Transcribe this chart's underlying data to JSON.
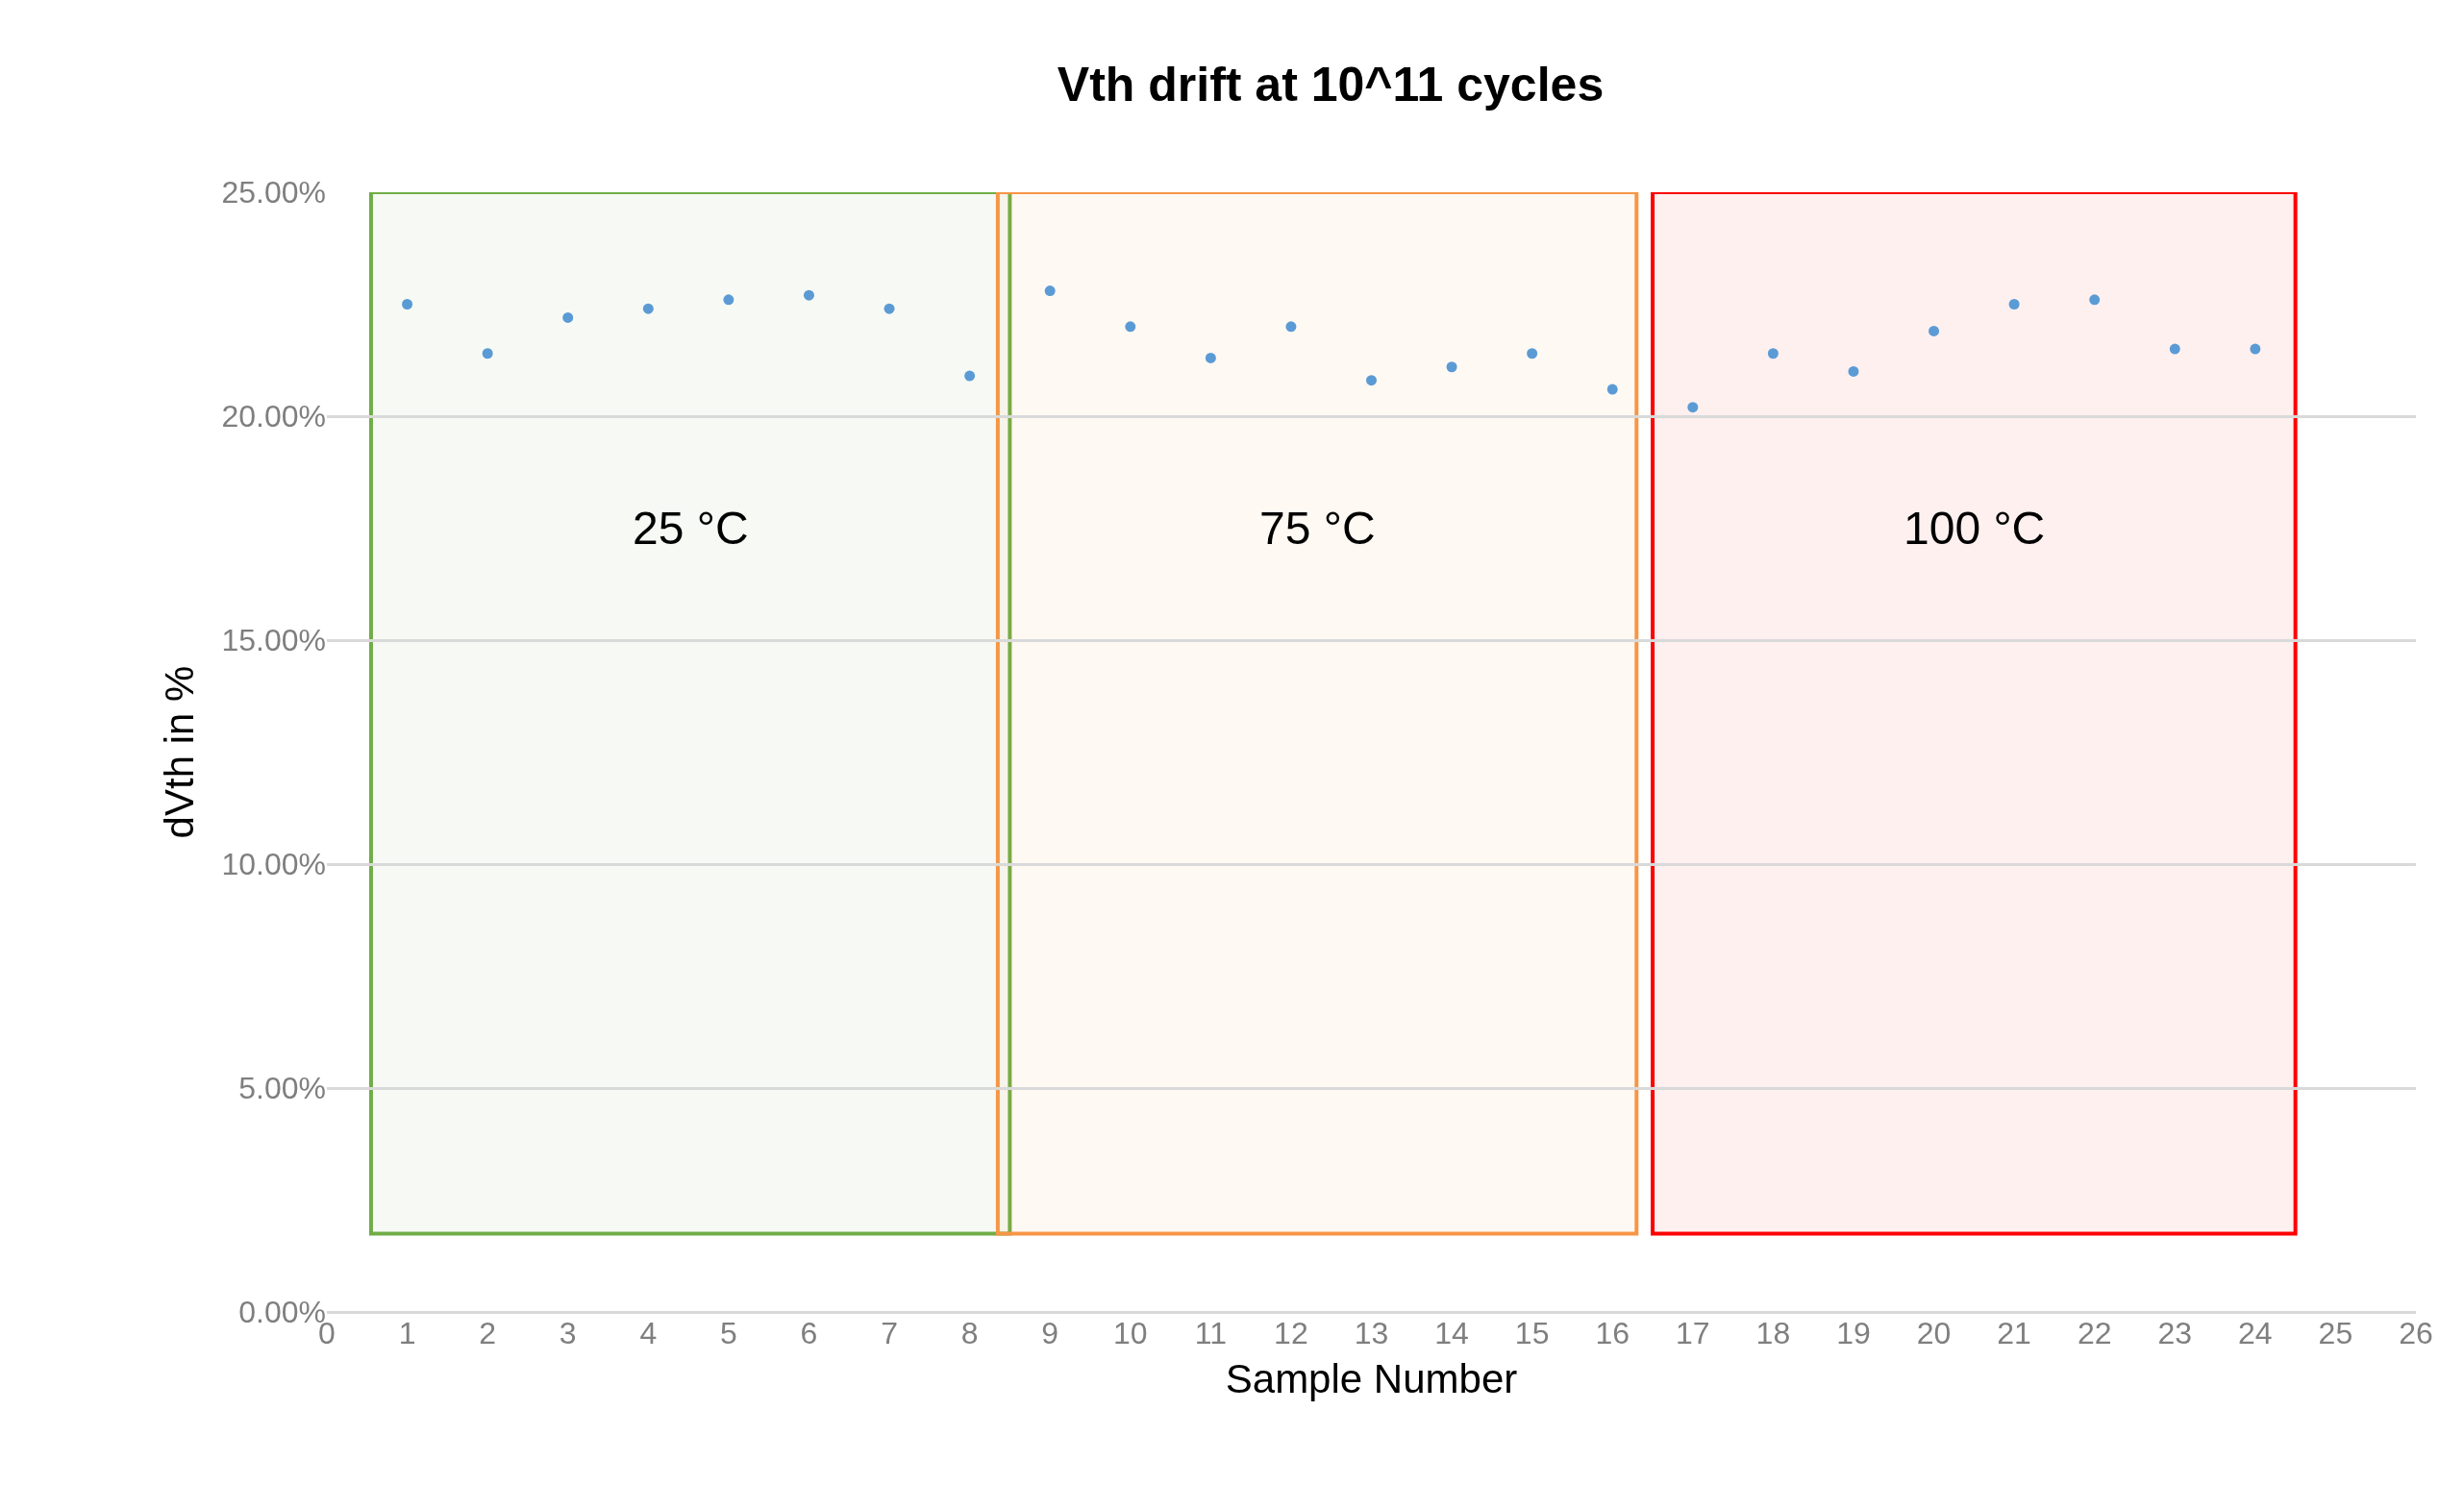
{
  "chart_data": {
    "type": "scatter",
    "title": "Vth drift at 10^11 cycles",
    "xlabel": "Sample Number",
    "ylabel": "dVth in %",
    "x": [
      1,
      2,
      3,
      4,
      5,
      6,
      7,
      8,
      9,
      10,
      11,
      12,
      13,
      14,
      15,
      16,
      17,
      18,
      19,
      20,
      21,
      22,
      23,
      24
    ],
    "series": [
      {
        "color": "#5b9bd5",
        "values": [
          22.5,
          21.4,
          22.2,
          22.4,
          22.6,
          22.7,
          22.4,
          20.9,
          22.8,
          22.0,
          21.3,
          22.0,
          20.8,
          21.1,
          21.4,
          20.6,
          20.2,
          21.4,
          21.0,
          21.9,
          22.5,
          22.6,
          21.5,
          21.5
        ]
      }
    ],
    "xlim": [
      0,
      26
    ],
    "xticks": [
      0,
      1,
      2,
      3,
      4,
      5,
      6,
      7,
      8,
      9,
      10,
      11,
      12,
      13,
      14,
      15,
      16,
      17,
      18,
      19,
      20,
      21,
      22,
      23,
      24,
      25,
      26
    ],
    "ylim": [
      0,
      25
    ],
    "yticks": [
      {
        "value": 0,
        "label": "0.00%"
      },
      {
        "value": 5,
        "label": "5.00%"
      },
      {
        "value": 10,
        "label": "10.00%"
      },
      {
        "value": 15,
        "label": "15.00%"
      },
      {
        "value": 20,
        "label": "20.00%"
      },
      {
        "value": 25,
        "label": "25.00%"
      }
    ],
    "bands": [
      {
        "axis": "x",
        "from": 0.55,
        "to": 8.5,
        "label": "25 °C",
        "color": "#70ad47"
      },
      {
        "axis": "x",
        "from": 8.35,
        "to": 16.3,
        "label": "75 °C",
        "color": "#f79646"
      },
      {
        "axis": "x",
        "from": 16.5,
        "to": 24.5,
        "label": "100 °C",
        "color": "#ff0000"
      }
    ],
    "grid": "y",
    "marker": "circle"
  }
}
